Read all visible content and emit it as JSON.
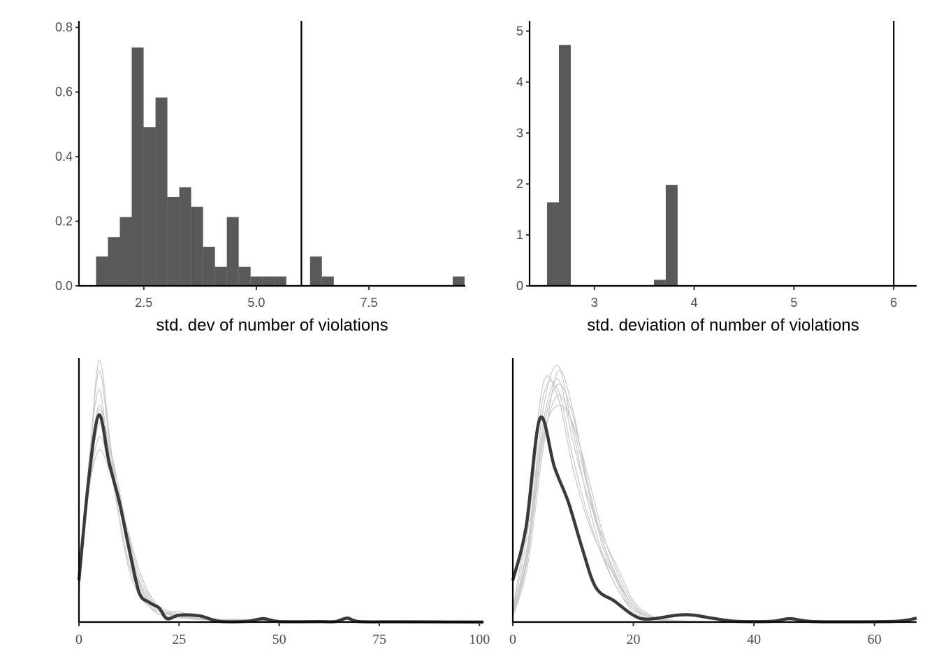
{
  "chart_data": [
    {
      "type": "bar",
      "subtype": "histogram",
      "xlabel": "std. dev of number of violations",
      "ylabel": "",
      "xlim": [
        1.06,
        9.64
      ],
      "ylim": [
        0,
        0.82
      ],
      "xticks": [
        2.5,
        5.0,
        7.5
      ],
      "xtick_labels": [
        "2.5",
        "5.0",
        "7.5"
      ],
      "yticks": [
        0.0,
        0.2,
        0.4,
        0.6,
        0.8
      ],
      "ytick_labels": [
        "0.0",
        "0.2",
        "0.4",
        "0.6",
        "0.8"
      ],
      "bin_start": 1.44,
      "bin_width": 0.264,
      "bins": [
        {
          "index": 0,
          "value": 0.091
        },
        {
          "index": 1,
          "value": 0.151
        },
        {
          "index": 2,
          "value": 0.213
        },
        {
          "index": 3,
          "value": 0.738
        },
        {
          "index": 4,
          "value": 0.491
        },
        {
          "index": 5,
          "value": 0.583
        },
        {
          "index": 6,
          "value": 0.275
        },
        {
          "index": 7,
          "value": 0.305
        },
        {
          "index": 8,
          "value": 0.245
        },
        {
          "index": 9,
          "value": 0.121
        },
        {
          "index": 10,
          "value": 0.059
        },
        {
          "index": 11,
          "value": 0.213
        },
        {
          "index": 12,
          "value": 0.059
        },
        {
          "index": 13,
          "value": 0.029
        },
        {
          "index": 14,
          "value": 0.029
        },
        {
          "index": 15,
          "value": 0.029
        },
        {
          "index": 18,
          "value": 0.091
        },
        {
          "index": 19,
          "value": 0.029
        },
        {
          "index": 30,
          "value": 0.029
        }
      ],
      "vline": 6.0,
      "bar_color": "#595959",
      "grid": false
    },
    {
      "type": "bar",
      "subtype": "histogram",
      "xlabel": "std. deviation of number of violations",
      "ylabel": "",
      "xlim": [
        2.35,
        6.23
      ],
      "ylim": [
        0,
        5.2
      ],
      "xticks": [
        3,
        4,
        5,
        6
      ],
      "xtick_labels": [
        "3",
        "4",
        "5",
        "6"
      ],
      "yticks": [
        0,
        1,
        2,
        3,
        4,
        5
      ],
      "ytick_labels": [
        "0",
        "1",
        "2",
        "3",
        "4",
        "5"
      ],
      "bin_start": 2.525,
      "bin_width": 0.119,
      "bins": [
        {
          "index": 0,
          "value": 1.64
        },
        {
          "index": 1,
          "value": 4.73
        },
        {
          "index": 9,
          "value": 0.12
        },
        {
          "index": 10,
          "value": 1.98
        }
      ],
      "vline": 6.0,
      "bar_color": "#595959",
      "grid": false
    },
    {
      "type": "line",
      "subtype": "density-overlay",
      "xlabel": "",
      "ylabel": "",
      "xlim": [
        0,
        101
      ],
      "ylim": [
        0,
        1
      ],
      "xticks": [
        0,
        25,
        50,
        75,
        100
      ],
      "xtick_labels": [
        "0",
        "25",
        "50",
        "75",
        "100"
      ],
      "observed": {
        "color": "#3a3a3a",
        "x": [
          0,
          2.5,
          5,
          7.5,
          10,
          12.5,
          15,
          17.5,
          20,
          22,
          25,
          30,
          35,
          42,
          46,
          50,
          60,
          64,
          67,
          70,
          80,
          101
        ],
        "y": [
          0.158,
          0.55,
          0.784,
          0.605,
          0.46,
          0.28,
          0.113,
          0.075,
          0.053,
          0.013,
          0.026,
          0.024,
          0.003,
          0.003,
          0.013,
          0.002,
          0.002,
          0.002,
          0.015,
          0.002,
          0.001,
          0.0
        ]
      },
      "replicates": {
        "color": "#c8c8c8",
        "x": [
          0,
          2.5,
          5,
          7.5,
          10,
          12.5,
          15,
          17.5,
          20,
          25,
          30,
          40,
          60,
          101
        ],
        "y": [
          [
            0.1,
            0.6,
            0.95,
            0.7,
            0.45,
            0.25,
            0.12,
            0.06,
            0.04,
            0.02,
            0.01,
            0.005,
            0.003,
            0
          ],
          [
            0.12,
            0.55,
            0.82,
            0.65,
            0.45,
            0.28,
            0.15,
            0.08,
            0.04,
            0.02,
            0.01,
            0.01,
            0.002,
            0
          ],
          [
            0.15,
            0.5,
            0.7,
            0.6,
            0.48,
            0.3,
            0.16,
            0.09,
            0.05,
            0.025,
            0.015,
            0.005,
            0.003,
            0
          ],
          [
            0.1,
            0.6,
            0.88,
            0.62,
            0.4,
            0.22,
            0.12,
            0.07,
            0.03,
            0.04,
            0.01,
            0.01,
            0.003,
            0
          ],
          [
            0.13,
            0.52,
            0.75,
            0.66,
            0.5,
            0.32,
            0.18,
            0.1,
            0.05,
            0.02,
            0.01,
            0.006,
            0.004,
            0
          ],
          [
            0.11,
            0.58,
            0.99,
            0.72,
            0.4,
            0.2,
            0.1,
            0.06,
            0.03,
            0.015,
            0.02,
            0.004,
            0.002,
            0
          ],
          [
            0.14,
            0.5,
            0.65,
            0.58,
            0.47,
            0.33,
            0.2,
            0.11,
            0.06,
            0.03,
            0.012,
            0.008,
            0.003,
            0
          ],
          [
            0.12,
            0.55,
            0.8,
            0.68,
            0.5,
            0.3,
            0.14,
            0.08,
            0.05,
            0.025,
            0.01,
            0.006,
            0.004,
            0
          ]
        ]
      },
      "grid": false
    },
    {
      "type": "line",
      "subtype": "density-overlay",
      "xlabel": "",
      "ylabel": "",
      "xlim": [
        0,
        67
      ],
      "ylim": [
        0,
        1
      ],
      "xticks": [
        0,
        20,
        40,
        60
      ],
      "xtick_labels": [
        "0",
        "20",
        "40",
        "60"
      ],
      "observed": {
        "color": "#3a3a3a",
        "x": [
          0,
          2.2,
          4.5,
          6.9,
          9.2,
          11.5,
          13.8,
          16.9,
          20,
          22.4,
          27.3,
          30,
          33,
          37,
          43,
          46,
          50,
          62,
          65,
          67
        ],
        "y": [
          0.158,
          0.36,
          0.771,
          0.587,
          0.455,
          0.28,
          0.13,
          0.079,
          0.026,
          0.011,
          0.026,
          0.026,
          0.015,
          0.003,
          0.003,
          0.013,
          0.002,
          0.002,
          0.006,
          0.015
        ]
      },
      "replicates": {
        "color": "#c8c8c8",
        "x": [
          0,
          2.5,
          5,
          7.5,
          10,
          12.5,
          15,
          17.5,
          20,
          22.5,
          25,
          30,
          40,
          67
        ],
        "y": [
          [
            0.03,
            0.3,
            0.8,
            0.97,
            0.72,
            0.45,
            0.25,
            0.12,
            0.05,
            0.02,
            0.008,
            0.003,
            0,
            0
          ],
          [
            0.02,
            0.25,
            0.72,
            0.9,
            0.78,
            0.52,
            0.3,
            0.15,
            0.06,
            0.02,
            0.01,
            0.002,
            0,
            0
          ],
          [
            0.04,
            0.35,
            0.85,
            0.88,
            0.62,
            0.4,
            0.24,
            0.12,
            0.04,
            0.015,
            0.005,
            0.002,
            0,
            0
          ],
          [
            0.03,
            0.28,
            0.7,
            0.82,
            0.75,
            0.55,
            0.33,
            0.18,
            0.07,
            0.025,
            0.01,
            0.002,
            0,
            0
          ],
          [
            0.02,
            0.22,
            0.65,
            0.95,
            0.8,
            0.5,
            0.28,
            0.14,
            0.05,
            0.02,
            0.006,
            0.001,
            0,
            0
          ],
          [
            0.05,
            0.4,
            0.9,
            0.85,
            0.58,
            0.38,
            0.25,
            0.15,
            0.06,
            0.02,
            0.005,
            0.001,
            0,
            0
          ],
          [
            0.03,
            0.3,
            0.75,
            0.92,
            0.68,
            0.47,
            0.32,
            0.2,
            0.08,
            0.03,
            0.01,
            0.003,
            0,
            0
          ],
          [
            0.02,
            0.26,
            0.68,
            0.86,
            0.74,
            0.5,
            0.3,
            0.16,
            0.06,
            0.02,
            0.008,
            0.002,
            0,
            0
          ]
        ]
      },
      "grid": false
    }
  ]
}
